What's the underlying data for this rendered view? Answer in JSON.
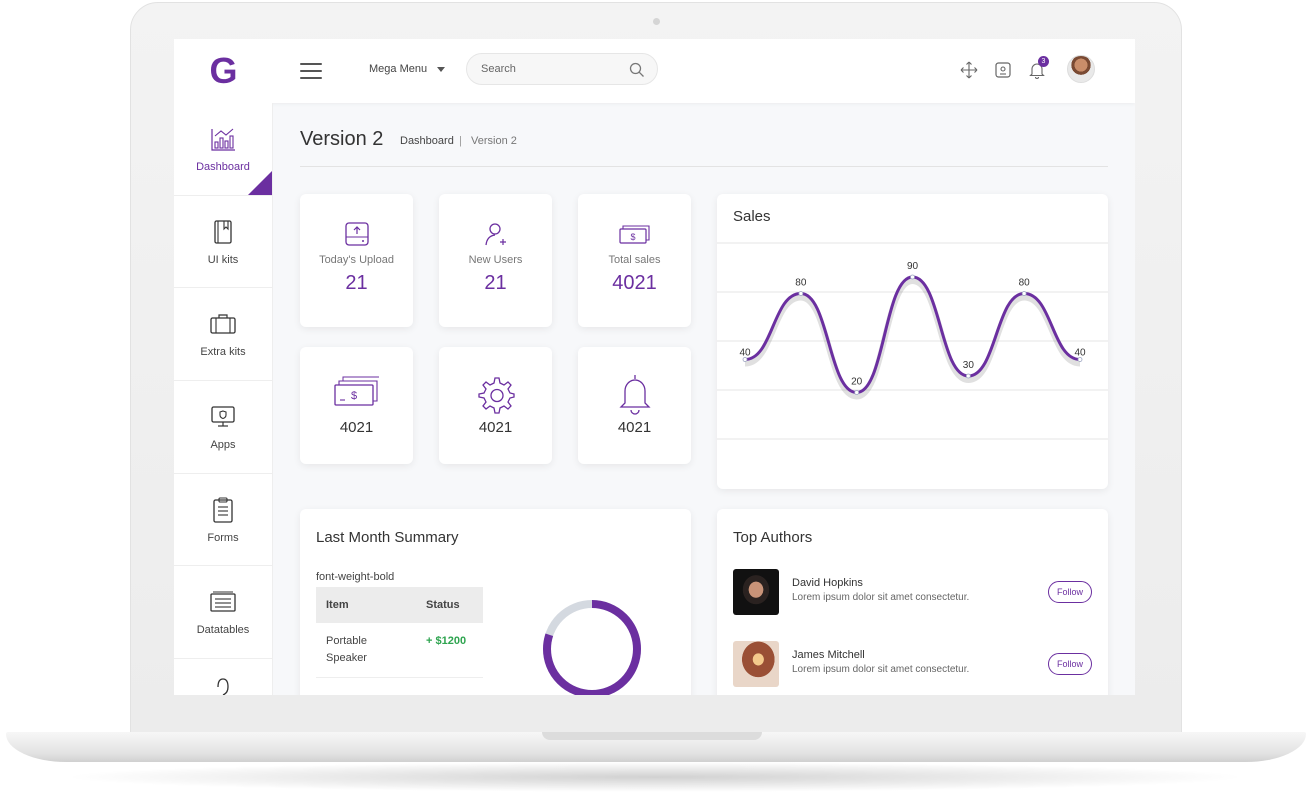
{
  "header": {
    "logo": "G",
    "mega_menu": "Mega Menu",
    "search_placeholder": "Search",
    "notification_count": "3"
  },
  "sidebar": {
    "items": [
      {
        "label": "Dashboard",
        "icon": "chart-icon"
      },
      {
        "label": "UI kits",
        "icon": "book-icon"
      },
      {
        "label": "Extra kits",
        "icon": "briefcase-icon"
      },
      {
        "label": "Apps",
        "icon": "monitor-icon"
      },
      {
        "label": "Forms",
        "icon": "clipboard-icon"
      },
      {
        "label": "Datatables",
        "icon": "table-icon"
      }
    ]
  },
  "page": {
    "title": "Version 2",
    "breadcrumb": [
      "Dashboard",
      "Version 2"
    ]
  },
  "stats": [
    {
      "label": "Today's Upload",
      "value": "21",
      "icon": "upload-icon"
    },
    {
      "label": "New Users",
      "value": "21",
      "icon": "add-user-icon"
    },
    {
      "label": "Total sales",
      "value": "4021",
      "icon": "cash-icon"
    },
    {
      "value": "4021",
      "icon": "money-stack-icon"
    },
    {
      "value": "4021",
      "icon": "gear-icon"
    },
    {
      "value": "4021",
      "icon": "bell-icon"
    }
  ],
  "sales": {
    "title": "Sales"
  },
  "chart_data": {
    "type": "line",
    "title": "Sales",
    "x": [
      0,
      1,
      2,
      3,
      4,
      5,
      6
    ],
    "values": [
      40,
      80,
      20,
      90,
      30,
      80,
      40
    ],
    "ylim": [
      -10,
      110
    ],
    "grid": true,
    "color": "#6b2fa0"
  },
  "summary": {
    "title": "Last Month Summary",
    "subtitle": "font-weight-bold",
    "columns": [
      "Item",
      "Status"
    ],
    "rows": [
      {
        "item": "Portable Speaker",
        "status": "+ $1200"
      }
    ],
    "donut_fraction": 0.8
  },
  "authors": {
    "title": "Top Authors",
    "list": [
      {
        "name": "David Hopkins",
        "desc": "Lorem ipsum dolor sit amet consectetur.",
        "button": "Follow"
      },
      {
        "name": "James Mitchell",
        "desc": "Lorem ipsum dolor sit amet consectetur.",
        "button": "Follow"
      }
    ]
  },
  "colors": {
    "accent": "#6b2fa0",
    "positive": "#2ea44f"
  }
}
